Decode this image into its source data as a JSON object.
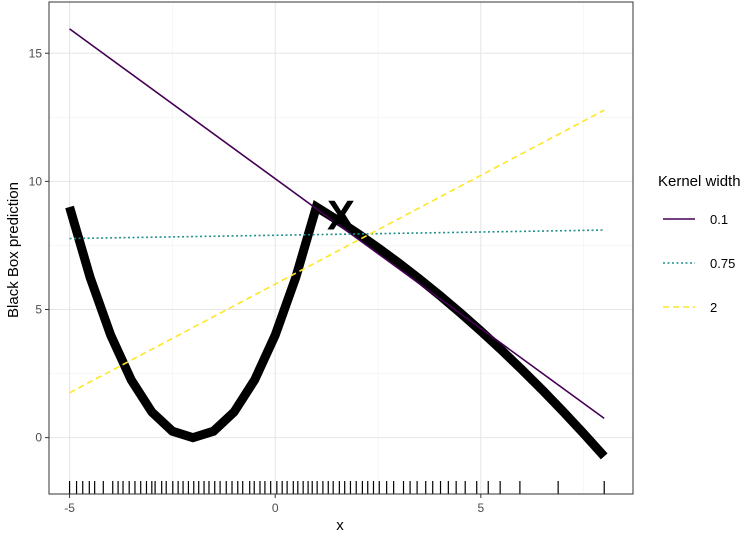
{
  "chart_data": {
    "type": "line",
    "title": "",
    "xlabel": "x",
    "ylabel": "Black Box prediction",
    "xlim": [
      -5.5,
      8.7
    ],
    "ylim": [
      -2.2,
      17.0
    ],
    "x_ticks": [
      -5,
      0,
      5
    ],
    "x_tick_labels": [
      "-5",
      "0",
      "5"
    ],
    "y_ticks": [
      0,
      5,
      10,
      15
    ],
    "y_tick_labels": [
      "0",
      "5",
      "10",
      "15"
    ],
    "x_minor_ticks": [
      -2.5,
      2.5,
      7.5
    ],
    "y_minor_ticks": [
      2.5,
      7.5,
      12.5
    ],
    "grid": true,
    "legend_position": "right",
    "legend_title": "Kernel width",
    "series": [
      {
        "name": "0.1",
        "kind": "line",
        "color": "#440154",
        "dash": "solid",
        "x": [
          -5,
          8
        ],
        "y": [
          15.95,
          0.75
        ]
      },
      {
        "name": "0.75",
        "kind": "line",
        "color": "#21908C",
        "dash": "dotted",
        "x": [
          -5,
          8
        ],
        "y": [
          7.77,
          8.1
        ]
      },
      {
        "name": "2",
        "kind": "line",
        "color": "#FDE725",
        "dash": "dashed",
        "x": [
          -5,
          8
        ],
        "y": [
          1.75,
          12.78
        ]
      }
    ],
    "black_box": {
      "color": "#000000",
      "x": [
        -5,
        -4.5,
        -4,
        -3.5,
        -3,
        -2.5,
        -2,
        -1.5,
        -1,
        -0.5,
        0,
        0.5,
        1,
        1.5,
        2,
        2.5,
        3,
        3.5,
        4,
        4.5,
        5,
        5.5,
        6,
        6.5,
        7,
        7.5,
        8
      ],
      "y": [
        9,
        6.25,
        4,
        2.25,
        1,
        0.25,
        0,
        0.25,
        1,
        2.25,
        4,
        6.25,
        9,
        8.5,
        7.97,
        7.41,
        6.82,
        6.2,
        5.55,
        4.87,
        4.16,
        3.42,
        2.65,
        1.85,
        1.02,
        0.16,
        -0.73
      ]
    },
    "marker": {
      "label": "X",
      "x": 1.6,
      "y": 8.55
    },
    "rug_x": [
      -5.0,
      -4.83,
      -4.68,
      -4.52,
      -4.39,
      -4.18,
      -3.95,
      -3.82,
      -3.7,
      -3.55,
      -3.41,
      -3.27,
      -3.13,
      -3.0,
      -2.92,
      -2.76,
      -2.65,
      -2.49,
      -2.36,
      -2.24,
      -2.11,
      -1.98,
      -1.86,
      -1.73,
      -1.61,
      -1.47,
      -1.34,
      -1.19,
      -1.05,
      -0.91,
      -0.79,
      -0.62,
      -0.51,
      -0.37,
      -0.25,
      -0.11,
      0.04,
      0.17,
      0.29,
      0.44,
      0.55,
      0.68,
      0.8,
      0.9,
      1.02,
      1.16,
      1.29,
      1.41,
      1.56,
      1.69,
      1.83,
      1.97,
      2.12,
      2.25,
      2.39,
      2.53,
      2.71,
      2.88,
      3.12,
      3.28,
      3.45,
      3.66,
      3.83,
      4.02,
      4.21,
      4.4,
      4.62,
      4.9,
      5.18,
      5.47,
      5.95,
      6.88,
      8.0
    ]
  }
}
